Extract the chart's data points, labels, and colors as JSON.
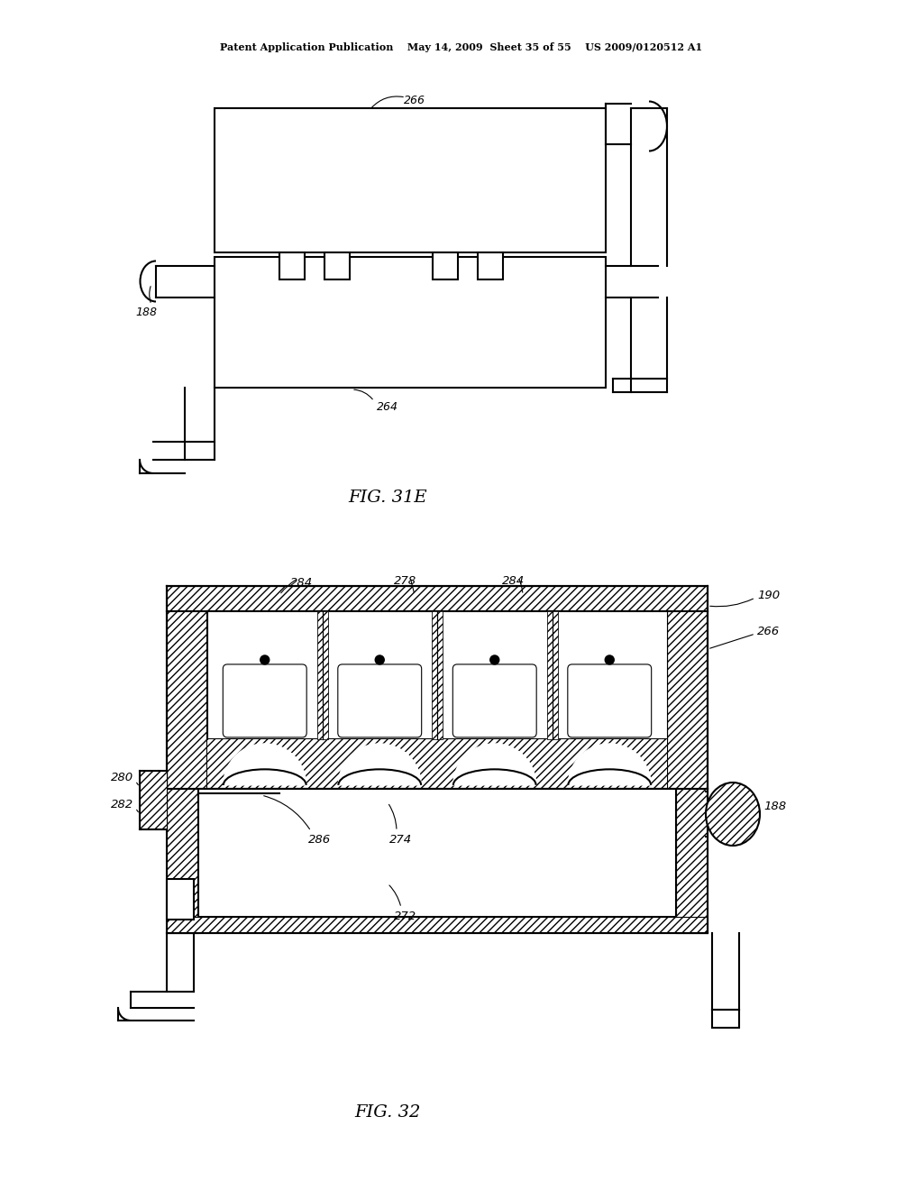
{
  "background_color": "#ffffff",
  "header_text": "Patent Application Publication    May 14, 2009  Sheet 35 of 55    US 2009/0120512 A1",
  "fig31e_label": "FIG. 31E",
  "fig32_label": "FIG. 32",
  "line_color": "#000000",
  "lw": 1.5
}
